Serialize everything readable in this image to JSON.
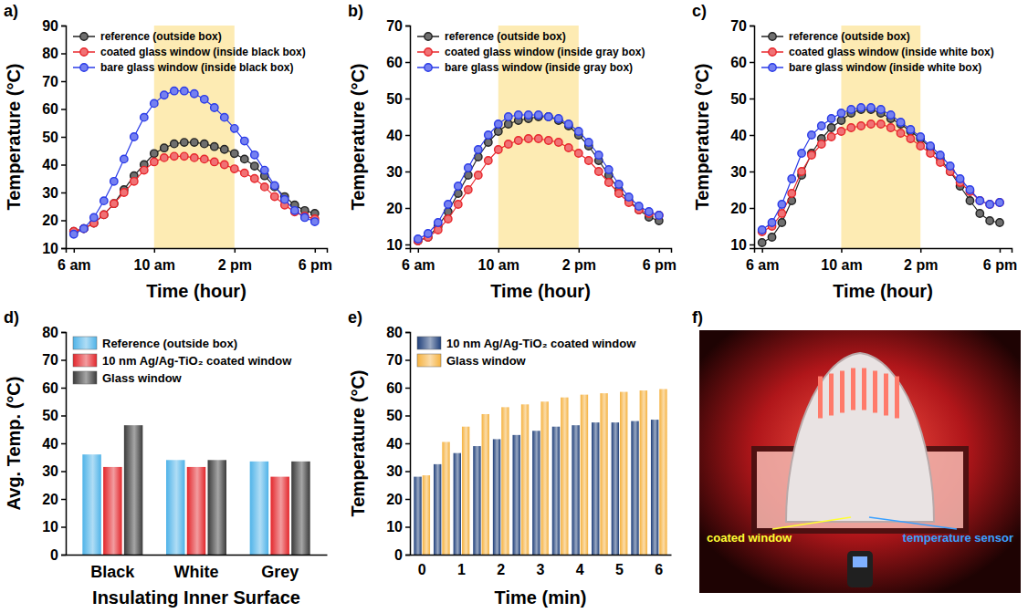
{
  "chart_data": [
    {
      "type": "line",
      "label": "a)",
      "x_label": "Time (hour)",
      "y_label": "Temperature (°C)",
      "x": [
        6,
        6.5,
        7,
        7.5,
        8,
        8.5,
        9,
        9.5,
        10,
        10.5,
        11,
        11.5,
        12,
        12.5,
        13,
        13.5,
        14,
        14.5,
        15,
        15.5,
        16,
        16.5,
        17,
        17.5,
        18
      ],
      "xlim": [
        5.6,
        18.6
      ],
      "xticks": [
        {
          "value": 6,
          "label": "6 am"
        },
        {
          "value": 10,
          "label": "10 am"
        },
        {
          "value": 14,
          "label": "2 pm"
        },
        {
          "value": 18,
          "label": "6 pm"
        }
      ],
      "ylim": [
        10,
        90
      ],
      "yticks": [
        10,
        20,
        30,
        40,
        50,
        60,
        70,
        80,
        90
      ],
      "shaded_x": [
        10,
        14
      ],
      "legend": "upper left",
      "marker": "circle",
      "series": [
        {
          "name": "reference (outside box)",
          "color": "#222222",
          "values": [
            16,
            17,
            19,
            22,
            26,
            31,
            36,
            40,
            44,
            46,
            47.5,
            48,
            48,
            47.5,
            46.5,
            45.5,
            44,
            42,
            39.5,
            36,
            32,
            28.5,
            25.5,
            23.5,
            22.5
          ]
        },
        {
          "name": "coated glass window (inside black box)",
          "color": "#e8262b",
          "values": [
            16,
            17,
            19,
            22,
            26,
            30,
            34,
            38,
            41,
            42.5,
            43,
            43,
            42.5,
            42,
            41,
            40,
            38.5,
            37,
            35,
            32,
            28.5,
            25.5,
            23,
            21.5,
            20.5
          ]
        },
        {
          "name": "bare glass window (inside black box)",
          "color": "#2a3be8",
          "values": [
            15,
            17,
            21,
            27,
            34,
            42,
            50,
            57,
            62,
            65,
            66.5,
            66.5,
            65.5,
            63.5,
            60.5,
            57,
            53,
            48.5,
            43.5,
            38,
            32.5,
            27.5,
            23.5,
            21,
            19.5
          ]
        }
      ]
    },
    {
      "type": "line",
      "label": "b)",
      "x_label": "Time (hour)",
      "y_label": "Temperature (°C)",
      "x": [
        6,
        6.5,
        7,
        7.5,
        8,
        8.5,
        9,
        9.5,
        10,
        10.5,
        11,
        11.5,
        12,
        12.5,
        13,
        13.5,
        14,
        14.5,
        15,
        15.5,
        16,
        16.5,
        17,
        17.5,
        18
      ],
      "xlim": [
        5.6,
        18.6
      ],
      "xticks": [
        {
          "value": 6,
          "label": "6 am"
        },
        {
          "value": 10,
          "label": "10 am"
        },
        {
          "value": 14,
          "label": "2 pm"
        },
        {
          "value": 18,
          "label": "6 pm"
        }
      ],
      "ylim": [
        9,
        70
      ],
      "yticks": [
        10,
        20,
        30,
        40,
        50,
        60,
        70
      ],
      "shaded_x": [
        10,
        14
      ],
      "legend": "upper left",
      "marker": "circle",
      "series": [
        {
          "name": "reference (outside box)",
          "color": "#222222",
          "values": [
            11,
            12,
            15,
            19,
            24,
            29,
            34,
            38,
            41,
            43,
            44,
            44.5,
            45,
            45,
            44,
            42.5,
            40,
            37,
            33,
            29,
            25,
            22,
            19.5,
            17.5,
            16.5
          ]
        },
        {
          "name": "coated glass window (inside gray box)",
          "color": "#e8262b",
          "values": [
            11,
            12,
            14,
            17,
            21,
            25,
            29,
            33,
            36,
            37.5,
            38.5,
            39,
            39,
            38.5,
            38,
            36.5,
            35,
            33,
            30,
            27,
            24,
            21.5,
            19.5,
            18.5,
            18
          ]
        },
        {
          "name": "bare glass window (inside gray box)",
          "color": "#2a3be8",
          "values": [
            11.5,
            13,
            16,
            21,
            26,
            31,
            36,
            40,
            43,
            45,
            45.5,
            45.5,
            45.5,
            45,
            44.5,
            43,
            41,
            38,
            34.5,
            30.5,
            26.5,
            23,
            20.5,
            19,
            18
          ]
        }
      ]
    },
    {
      "type": "line",
      "label": "c)",
      "x_label": "Time (hour)",
      "y_label": "Temperature (°C)",
      "x": [
        6,
        6.5,
        7,
        7.5,
        8,
        8.5,
        9,
        9.5,
        10,
        10.5,
        11,
        11.5,
        12,
        12.5,
        13,
        13.5,
        14,
        14.5,
        15,
        15.5,
        16,
        16.5,
        17,
        17.5,
        18
      ],
      "xlim": [
        5.6,
        18.6
      ],
      "xticks": [
        {
          "value": 6,
          "label": "6 am"
        },
        {
          "value": 10,
          "label": "10 am"
        },
        {
          "value": 14,
          "label": "2 pm"
        },
        {
          "value": 18,
          "label": "6 pm"
        }
      ],
      "ylim": [
        9,
        70
      ],
      "yticks": [
        10,
        20,
        30,
        40,
        50,
        60,
        70
      ],
      "shaded_x": [
        10,
        14
      ],
      "legend": "upper left",
      "marker": "circle",
      "series": [
        {
          "name": "reference (outside box)",
          "color": "#222222",
          "values": [
            10.5,
            12,
            16,
            22,
            29,
            35,
            39,
            42,
            44,
            46,
            47,
            47,
            46,
            44.5,
            43,
            41,
            39,
            36.5,
            33.5,
            30,
            26,
            22,
            18.5,
            16.5,
            16
          ]
        },
        {
          "name": "coated glass window (inside white box)",
          "color": "#e8262b",
          "values": [
            13.5,
            15,
            18.5,
            24,
            30,
            34.5,
            37.5,
            39.5,
            41,
            42,
            42.5,
            43,
            43,
            42,
            40.5,
            39,
            37,
            35,
            32.5,
            30,
            27,
            24.5,
            22,
            21,
            21.5
          ]
        },
        {
          "name": "bare glass window (inside white box)",
          "color": "#2a3be8",
          "values": [
            14,
            16,
            21,
            28,
            35,
            40,
            42.5,
            44.5,
            46,
            47,
            47.5,
            47.5,
            47,
            45.5,
            43.5,
            41.5,
            39.5,
            37,
            34.5,
            31.5,
            28,
            25,
            22,
            21,
            21.5
          ]
        }
      ]
    },
    {
      "type": "bar",
      "label": "d)",
      "x_label": "Insulating Inner Surface",
      "y_label": "Avg. Temp. (°C)",
      "categories": [
        "Black",
        "White",
        "Grey"
      ],
      "ylim": [
        0,
        80
      ],
      "yticks": [
        0,
        10,
        20,
        30,
        40,
        50,
        60,
        70,
        80
      ],
      "legend": "upper left",
      "series": [
        {
          "name": "Reference (outside box)",
          "color": "#4fb3e8",
          "values": [
            36,
            34,
            33.5
          ]
        },
        {
          "name": "10 nm Ag/Ag-TiO₂ coated window",
          "color": "#e3262b",
          "values": [
            31.5,
            31.5,
            28
          ]
        },
        {
          "name": "Glass window",
          "color": "#3a3a3a",
          "values": [
            46.5,
            34,
            33.5
          ]
        }
      ]
    },
    {
      "type": "bar",
      "label": "e)",
      "x_label": "Time (min)",
      "y_label": "Temperature (°C)",
      "categories": [
        "0",
        null,
        "1",
        null,
        "2",
        null,
        "3",
        null,
        "4",
        null,
        "5",
        null,
        "6"
      ],
      "ylim": [
        0,
        80
      ],
      "yticks": [
        0,
        10,
        20,
        30,
        40,
        50,
        60,
        70,
        80
      ],
      "legend": "upper left",
      "series": [
        {
          "name": "10 nm Ag/Ag-TiO₂ coated window",
          "color": "#1f3f7a",
          "values": [
            28,
            32.5,
            36.5,
            39,
            41.5,
            43,
            44.5,
            46,
            46.5,
            47.5,
            47.5,
            48,
            48.5
          ]
        },
        {
          "name": "Glass window",
          "color": "#f5b240",
          "values": [
            28.5,
            40.5,
            46,
            50.5,
            53,
            54,
            55,
            56.5,
            57.5,
            58,
            58.5,
            59,
            59.5
          ]
        }
      ]
    },
    {
      "type": "photo",
      "label": "f)",
      "annotations": [
        {
          "text": "coated window",
          "color": "#ffff33"
        },
        {
          "text": "temperature sensor",
          "color": "#3aa0ff"
        }
      ]
    }
  ]
}
